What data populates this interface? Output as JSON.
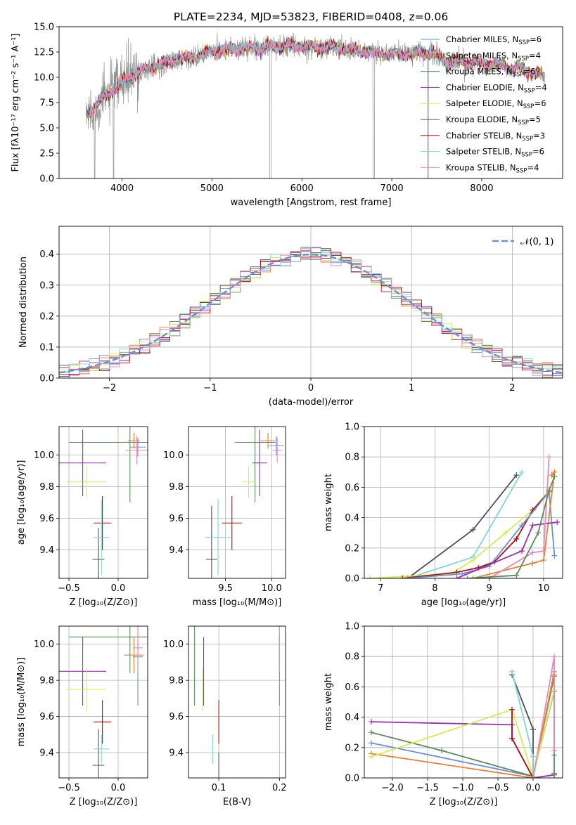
{
  "colors": [
    "#6a8fd8",
    "#e8802a",
    "#5b8b5b",
    "#9b2fae",
    "#d4ec52",
    "#505050",
    "#b01010",
    "#7fd6d6",
    "#e888c0",
    "#909090"
  ],
  "chart_data": [
    {
      "id": "spectrum",
      "type": "line",
      "title": "PLATE=2234, MJD=53823, FIBERID=0408, z=0.06",
      "xlabel": "wavelength [Angstrom, rest frame]",
      "ylabel": "Flux [fλ10⁻¹⁷ erg cm⁻² s⁻¹ A⁻¹]",
      "xlim": [
        3300,
        8900
      ],
      "ylim": [
        0,
        15
      ],
      "xticks": [
        4000,
        5000,
        6000,
        7000,
        8000
      ],
      "yticks": [
        0.0,
        2.5,
        5.0,
        7.5,
        10.0,
        12.5,
        15.0
      ],
      "ytick_labels": [
        "0.0",
        "2.5",
        "5.0",
        "7.5",
        "10.0",
        "12.5",
        "15.0"
      ],
      "grid": false,
      "legend_position": "right",
      "data_range": [
        3600,
        8700
      ],
      "envelope": {
        "x": [
          3600,
          3800,
          4000,
          4200,
          4400,
          4600,
          4800,
          5000,
          5200,
          5400,
          5600,
          5800,
          6000,
          6200,
          6400,
          6600,
          6800,
          7000,
          7200,
          7400,
          7600,
          7800,
          8000,
          8200,
          8400,
          8600,
          8700
        ],
        "y": [
          6.3,
          8.0,
          9.5,
          10.5,
          11.2,
          11.7,
          12.0,
          12.5,
          12.8,
          12.9,
          13.0,
          13.1,
          13.1,
          13.0,
          12.9,
          12.7,
          12.4,
          12.3,
          12.3,
          12.5,
          11.6,
          11.5,
          11.4,
          11.2,
          10.9,
          10.4,
          10.1
        ]
      },
      "series": [
        {
          "name": "Chabrier MILES, N",
          "suffix": "=6"
        },
        {
          "name": "Salpeter MILES, N",
          "suffix": "=4"
        },
        {
          "name": "Kroupa MILES, N",
          "suffix": "=6"
        },
        {
          "name": "Chabrier ELODIE, N",
          "suffix": "=4"
        },
        {
          "name": "Salpeter ELODIE, N",
          "suffix": "=6"
        },
        {
          "name": "Kroupa ELODIE, N",
          "suffix": "=5"
        },
        {
          "name": "Chabrier STELIB, N",
          "suffix": "=3"
        },
        {
          "name": "Salpeter STELIB, N",
          "suffix": "=6"
        },
        {
          "name": "Kroupa STELIB, N",
          "suffix": "=4"
        }
      ],
      "legend_sub": "SSP"
    },
    {
      "id": "residuals",
      "type": "line",
      "xlabel": "(data-model)/error",
      "ylabel": "Normed distribution",
      "xlim": [
        -2.5,
        2.5
      ],
      "ylim": [
        0,
        0.49
      ],
      "xticks": [
        -2,
        -1,
        0,
        1,
        2
      ],
      "xtick_labels": [
        "−2",
        "−1",
        "0",
        "1",
        "2"
      ],
      "yticks": [
        0.0,
        0.1,
        0.2,
        0.3,
        0.4
      ],
      "ytick_labels": [
        "0.0",
        "0.1",
        "0.2",
        "0.3",
        "0.4"
      ],
      "grid": true,
      "legend": "𝒩(0, 1)",
      "legend_position": "top-right",
      "bin_width": 0.1,
      "series_count": 9
    },
    {
      "id": "age_vs_Z",
      "type": "scatter",
      "xlabel": "Z [log₁₀(Z/Z⊙)]",
      "ylabel": "age  [log₁₀(age/yr)]",
      "xlim": [
        -0.6,
        0.3
      ],
      "ylim": [
        9.22,
        10.18
      ],
      "xticks": [
        -0.5,
        0.0
      ],
      "xtick_labels": [
        "−0.5",
        "0.0"
      ],
      "yticks": [
        9.4,
        9.6,
        9.8,
        10.0
      ],
      "ytick_labels": [
        "9.4",
        "9.6",
        "9.8",
        "10.0"
      ],
      "grid": true,
      "points": [
        {
          "x": 0.2,
          "y": 10.05,
          "xerr": 0.08,
          "yerr": 0.06,
          "c": 0
        },
        {
          "x": 0.16,
          "y": 10.09,
          "xerr": 0.06,
          "yerr": 0.05,
          "c": 1
        },
        {
          "x": 0.12,
          "y": 10.08,
          "xerr": 0.62,
          "yerr": 0.38,
          "c": 2
        },
        {
          "x": -0.36,
          "y": 9.95,
          "xerr": 0.24,
          "yerr": 0.21,
          "c": 3
        },
        {
          "x": -0.32,
          "y": 9.83,
          "xerr": 0.2,
          "yerr": 0.1,
          "c": 4
        },
        {
          "x": -0.2,
          "y": 9.34,
          "xerr": 0.06,
          "yerr": 0.2,
          "c": 5
        },
        {
          "x": -0.16,
          "y": 9.57,
          "xerr": 0.09,
          "yerr": 0.17,
          "c": 6
        },
        {
          "x": -0.17,
          "y": 9.48,
          "xerr": 0.08,
          "yerr": 0.24,
          "c": 7
        },
        {
          "x": 0.19,
          "y": 10.03,
          "xerr": 0.12,
          "yerr": 0.09,
          "c": 8
        }
      ]
    },
    {
      "id": "age_vs_mass",
      "type": "scatter",
      "xlabel": "mass [log₁₀(M/M⊙)]",
      "xlim": [
        9.1,
        10.15
      ],
      "ylim": [
        9.22,
        10.18
      ],
      "xticks": [
        9.5,
        10.0
      ],
      "xtick_labels": [
        "9.5",
        "10.0"
      ],
      "yticks": [
        9.4,
        9.6,
        9.8,
        10.0
      ],
      "ytick_labels": [
        "9.4",
        "9.6",
        "9.8",
        "10.0"
      ],
      "grid": true,
      "points": [
        {
          "x": 10.05,
          "y": 10.06,
          "xerr": 0.08,
          "yerr": 0.06,
          "c": 0
        },
        {
          "x": 9.96,
          "y": 10.09,
          "xerr": 0.08,
          "yerr": 0.05,
          "c": 1
        },
        {
          "x": 9.82,
          "y": 10.08,
          "xerr": 0.22,
          "yerr": 0.38,
          "c": 2
        },
        {
          "x": 9.87,
          "y": 9.95,
          "xerr": 0.08,
          "yerr": 0.21,
          "c": 3
        },
        {
          "x": 9.75,
          "y": 9.83,
          "xerr": 0.07,
          "yerr": 0.1,
          "c": 4
        },
        {
          "x": 9.35,
          "y": 9.34,
          "xerr": 0.06,
          "yerr": 0.34,
          "c": 5
        },
        {
          "x": 9.57,
          "y": 9.57,
          "xerr": 0.11,
          "yerr": 0.17,
          "c": 6
        },
        {
          "x": 9.42,
          "y": 9.48,
          "xerr": 0.14,
          "yerr": 0.24,
          "c": 7
        },
        {
          "x": 10.06,
          "y": 10.03,
          "xerr": 0.05,
          "yerr": 0.08,
          "c": 8
        }
      ]
    },
    {
      "id": "mw_vs_age",
      "type": "line",
      "xlabel": "age  [log₁₀(age/yr)]",
      "ylabel": "mass weight",
      "xlim": [
        6.7,
        10.35
      ],
      "ylim": [
        0,
        1
      ],
      "xticks": [
        7,
        8,
        9,
        10
      ],
      "xtick_labels": [
        "7",
        "8",
        "9",
        "10"
      ],
      "yticks": [
        0.0,
        0.2,
        0.4,
        0.6,
        0.8,
        1.0
      ],
      "ytick_labels": [
        "0.0",
        "0.2",
        "0.4",
        "0.6",
        "0.8",
        "1.0"
      ],
      "grid": true,
      "series": [
        {
          "c": 5,
          "x": [
            7.5,
            8.7,
            9.5
          ],
          "y": [
            0.0,
            0.32,
            0.68
          ]
        },
        {
          "c": 7,
          "x": [
            6.8,
            7.5,
            8.7,
            9.6
          ],
          "y": [
            0.0,
            0.0,
            0.14,
            0.7
          ]
        },
        {
          "c": 4,
          "x": [
            6.8,
            8.3,
            8.7,
            9.3,
            9.8,
            10.1
          ],
          "y": [
            0.0,
            0.03,
            0.12,
            0.3,
            0.45,
            0.58
          ]
        },
        {
          "c": 6,
          "x": [
            7.4,
            8.4,
            8.8,
            9.1,
            9.5,
            9.8,
            10.1
          ],
          "y": [
            0.0,
            0.04,
            0.07,
            0.11,
            0.26,
            0.45,
            0.57
          ]
        },
        {
          "c": 0,
          "x": [
            7.5,
            8.5,
            9.0,
            9.6,
            10.1,
            10.2
          ],
          "y": [
            0.0,
            0.03,
            0.08,
            0.35,
            0.57,
            0.15
          ]
        },
        {
          "c": 1,
          "x": [
            8.7,
            9.8,
            10.0,
            10.2,
            10.15
          ],
          "y": [
            0.0,
            0.1,
            0.12,
            0.7,
            0.68
          ]
        },
        {
          "c": 3,
          "x": [
            8.4,
            9.6,
            9.8,
            10.25
          ],
          "y": [
            0.0,
            0.18,
            0.35,
            0.37
          ]
        },
        {
          "c": 8,
          "x": [
            9.0,
            9.8,
            10.0,
            10.1
          ],
          "y": [
            0.0,
            0.17,
            0.18,
            0.8
          ]
        },
        {
          "c": 2,
          "x": [
            8.6,
            9.5,
            9.9,
            10.1,
            10.2
          ],
          "y": [
            0.0,
            0.02,
            0.3,
            0.58,
            0.67
          ]
        }
      ]
    },
    {
      "id": "mass_vs_Z",
      "type": "scatter",
      "xlabel": "Z [log₁₀(Z/Z⊙)]",
      "ylabel": "mass [log₁₀(M/M⊙)]",
      "xlim": [
        -0.6,
        0.3
      ],
      "ylim": [
        9.26,
        10.1
      ],
      "xticks": [
        -0.5,
        0.0
      ],
      "xtick_labels": [
        "−0.5",
        "0.0"
      ],
      "yticks": [
        9.4,
        9.6,
        9.8,
        10.0
      ],
      "ytick_labels": [
        "9.4",
        "9.6",
        "9.8",
        "10.0"
      ],
      "grid": true,
      "points": [
        {
          "x": 0.2,
          "y": 9.93,
          "xerr": 0.05,
          "yerr": 0.27,
          "c": 0
        },
        {
          "x": 0.16,
          "y": 9.94,
          "xerr": 0.1,
          "yerr": 0.1,
          "c": 1
        },
        {
          "x": 0.12,
          "y": 10.04,
          "xerr": 0.62,
          "yerr": 0.2,
          "c": 2
        },
        {
          "x": -0.36,
          "y": 9.85,
          "xerr": 0.24,
          "yerr": 0.19,
          "c": 3
        },
        {
          "x": -0.32,
          "y": 9.75,
          "xerr": 0.2,
          "yerr": 0.12,
          "c": 4
        },
        {
          "x": -0.2,
          "y": 9.33,
          "xerr": 0.06,
          "yerr": 0.2,
          "c": 5
        },
        {
          "x": -0.16,
          "y": 9.57,
          "xerr": 0.09,
          "yerr": 0.12,
          "c": 6
        },
        {
          "x": -0.17,
          "y": 9.42,
          "xerr": 0.08,
          "yerr": 0.08,
          "c": 7
        },
        {
          "x": 0.2,
          "y": 9.98,
          "xerr": 0.05,
          "yerr": 0.13,
          "c": 8
        }
      ]
    },
    {
      "id": "mass_vs_ebv",
      "type": "scatter",
      "xlabel": "E(B-V)",
      "xlim": [
        0.05,
        0.21
      ],
      "ylim": [
        9.26,
        10.1
      ],
      "xticks": [
        0.1,
        0.2
      ],
      "xtick_labels": [
        "0.1",
        "0.2"
      ],
      "yticks": [
        9.4,
        9.6,
        9.8,
        10.0
      ],
      "ytick_labels": [
        "9.4",
        "9.6",
        "9.8",
        "10.0"
      ],
      "grid": true,
      "points": [
        {
          "x": 0.2,
          "y": 9.93,
          "yerr": 0.27,
          "c": 0
        },
        {
          "x": 0.2,
          "y": 9.94,
          "yerr": 0.1,
          "c": 1
        },
        {
          "x": 0.06,
          "y": 10.04,
          "yerr": 0.38,
          "c": 2
        },
        {
          "x": 0.075,
          "y": 9.85,
          "yerr": 0.19,
          "c": 3
        },
        {
          "x": 0.073,
          "y": 9.75,
          "yerr": 0.12,
          "c": 4
        },
        {
          "x": 0.1,
          "y": 9.33,
          "yerr": 0.07,
          "c": 5
        },
        {
          "x": 0.1,
          "y": 9.57,
          "yerr": 0.12,
          "c": 6
        },
        {
          "x": 0.09,
          "y": 9.42,
          "yerr": 0.08,
          "c": 7
        },
        {
          "x": 0.2,
          "y": 9.98,
          "yerr": 0.13,
          "c": 8
        }
      ]
    },
    {
      "id": "mw_vs_Z",
      "type": "line",
      "xlabel": "Z [log₁₀(Z/Z⊙)]",
      "ylabel": "mass weight",
      "xlim": [
        -2.4,
        0.42
      ],
      "ylim": [
        0,
        1
      ],
      "xticks": [
        -2.0,
        -1.5,
        -1.0,
        -0.5,
        0.0
      ],
      "xtick_labels": [
        "−2.0",
        "−1.5",
        "−1.0",
        "−0.5",
        "0.0"
      ],
      "yticks": [
        0.0,
        0.2,
        0.4,
        0.6,
        0.8,
        1.0
      ],
      "ytick_labels": [
        "0.0",
        "0.2",
        "0.4",
        "0.6",
        "0.8",
        "1.0"
      ],
      "grid": true,
      "series": [
        {
          "c": 3,
          "x": [
            -2.3,
            -0.3,
            -0.3,
            0.0,
            0.3,
            0.3
          ],
          "y": [
            0.37,
            0.35,
            0.26,
            0.0,
            0.02,
            0.02
          ]
        },
        {
          "c": 0,
          "x": [
            -2.3,
            0.0,
            0.3,
            0.3
          ],
          "y": [
            0.23,
            0.01,
            0.57,
            0.15
          ]
        },
        {
          "c": 2,
          "x": [
            -2.3,
            -1.3,
            0.0,
            0.3,
            0.3
          ],
          "y": [
            0.3,
            0.18,
            0.01,
            0.67,
            0.03
          ]
        },
        {
          "c": 1,
          "x": [
            -2.3,
            0.0,
            0.3,
            0.3
          ],
          "y": [
            0.16,
            0.0,
            0.7,
            0.68
          ]
        },
        {
          "c": 4,
          "x": [
            -2.3,
            -0.3,
            0.0,
            0.3
          ],
          "y": [
            0.14,
            0.45,
            0.01,
            0.58
          ]
        },
        {
          "c": 6,
          "x": [
            -0.3,
            -0.3,
            0.0,
            0.0
          ],
          "y": [
            0.45,
            0.26,
            0.0,
            0.0
          ]
        },
        {
          "c": 5,
          "x": [
            -0.3,
            0.0,
            0.0
          ],
          "y": [
            0.68,
            0.32,
            0.0
          ]
        },
        {
          "c": 7,
          "x": [
            -0.3,
            0.0,
            0.0
          ],
          "y": [
            0.7,
            0.14,
            0.0
          ]
        },
        {
          "c": 8,
          "x": [
            0.0,
            0.3,
            0.3
          ],
          "y": [
            0.0,
            0.8,
            0.18
          ]
        }
      ]
    }
  ]
}
